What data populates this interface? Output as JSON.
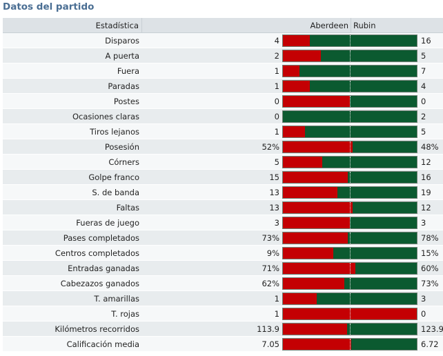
{
  "title": "Datos del partido",
  "header": {
    "stat_label": "Estadística",
    "home_team": "Aberdeen",
    "away_team": "Rubin"
  },
  "colors": {
    "home": "#c40003",
    "away": "#0b5a30",
    "title": "#4a6e93"
  },
  "rows": [
    {
      "label": "Disparos",
      "home": "4",
      "away": "16",
      "home_share": 0.2
    },
    {
      "label": "A puerta",
      "home": "2",
      "away": "5",
      "home_share": 0.2857
    },
    {
      "label": "Fuera",
      "home": "1",
      "away": "7",
      "home_share": 0.125
    },
    {
      "label": "Paradas",
      "home": "1",
      "away": "4",
      "home_share": 0.2
    },
    {
      "label": "Postes",
      "home": "0",
      "away": "0",
      "home_share": 0.5
    },
    {
      "label": "Ocasiones claras",
      "home": "0",
      "away": "2",
      "home_share": 0.0
    },
    {
      "label": "Tiros lejanos",
      "home": "1",
      "away": "5",
      "home_share": 0.1667
    },
    {
      "label": "Posesión",
      "home": "52%",
      "away": "48%",
      "home_share": 0.52
    },
    {
      "label": "Córners",
      "home": "5",
      "away": "12",
      "home_share": 0.2941
    },
    {
      "label": "Golpe franco",
      "home": "15",
      "away": "16",
      "home_share": 0.4839
    },
    {
      "label": "S. de banda",
      "home": "13",
      "away": "19",
      "home_share": 0.4063
    },
    {
      "label": "Faltas",
      "home": "13",
      "away": "12",
      "home_share": 0.52
    },
    {
      "label": "Fueras de juego",
      "home": "3",
      "away": "3",
      "home_share": 0.5
    },
    {
      "label": "Pases completados",
      "home": "73%",
      "away": "78%",
      "home_share": 0.4834
    },
    {
      "label": "Centros completados",
      "home": "9%",
      "away": "15%",
      "home_share": 0.375
    },
    {
      "label": "Entradas ganadas",
      "home": "71%",
      "away": "60%",
      "home_share": 0.542
    },
    {
      "label": "Cabezazos ganados",
      "home": "62%",
      "away": "73%",
      "home_share": 0.4593
    },
    {
      "label": "T. amarillas",
      "home": "1",
      "away": "3",
      "home_share": 0.25
    },
    {
      "label": "T. rojas",
      "home": "1",
      "away": "0",
      "home_share": 1.0
    },
    {
      "label": "Kilómetros recorridos",
      "home": "113.9",
      "away": "123.9",
      "home_share": 0.4789
    },
    {
      "label": "Calificación media",
      "home": "7.05",
      "away": "6.72",
      "home_share": 0.512
    }
  ]
}
